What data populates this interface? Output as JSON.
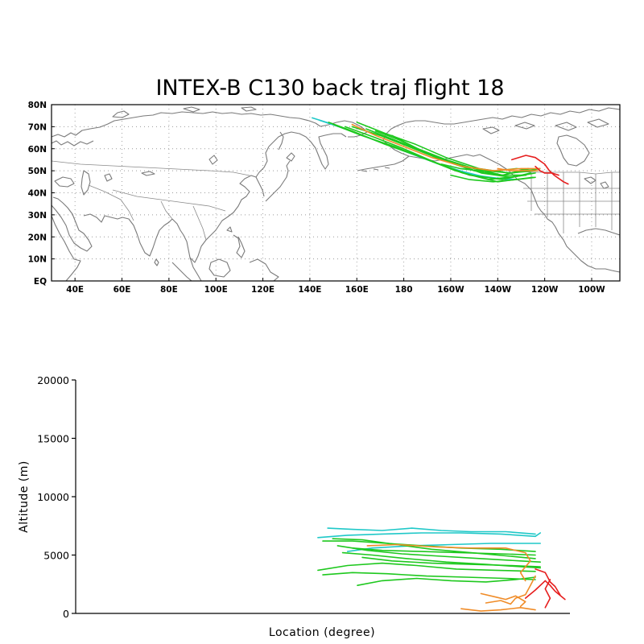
{
  "title": "INTEX-B C130 back traj flight 18",
  "colors": {
    "coastline": "#7a7a7a",
    "grid": "#9a9a9a",
    "cyan": "#1fc8c8",
    "green": "#1ec81e",
    "orange": "#f08c28",
    "red": "#e61e1e"
  },
  "chart_data": [
    {
      "type": "line",
      "subtype": "map-trajectories",
      "title": "INTEX-B C130 back traj flight 18",
      "xlim": [
        30,
        272
      ],
      "ylim": [
        0,
        80
      ],
      "grid": true,
      "x_ticks": [
        "40E",
        "60E",
        "80E",
        "100E",
        "120E",
        "140E",
        "160E",
        "180",
        "160W",
        "140W",
        "120W",
        "100W"
      ],
      "x_tick_values": [
        40,
        60,
        80,
        100,
        120,
        140,
        160,
        180,
        200,
        220,
        240,
        260
      ],
      "y_ticks": [
        "EQ",
        "10N",
        "20N",
        "30N",
        "40N",
        "50N",
        "60N",
        "70N",
        "80N"
      ],
      "y_tick_values": [
        0,
        10,
        20,
        30,
        40,
        50,
        60,
        70,
        80
      ],
      "series": [
        {
          "color": "cyan",
          "points": [
            [
              141,
              74
            ],
            [
              150,
              71
            ],
            [
              165,
              65
            ],
            [
              180,
              59
            ],
            [
              195,
              53
            ],
            [
              210,
              48
            ],
            [
              224,
              46
            ]
          ]
        },
        {
          "color": "cyan",
          "points": [
            [
              144,
              73
            ],
            [
              155,
              69
            ],
            [
              170,
              63
            ],
            [
              185,
              57
            ],
            [
              200,
              51
            ],
            [
              215,
              47
            ],
            [
              228,
              46
            ]
          ]
        },
        {
          "color": "green",
          "points": [
            [
              148,
              72
            ],
            [
              158,
              68
            ],
            [
              172,
              62
            ],
            [
              188,
              56
            ],
            [
              202,
              50
            ],
            [
              216,
              46
            ],
            [
              232,
              48
            ]
          ]
        },
        {
          "color": "green",
          "points": [
            [
              150,
              71
            ],
            [
              162,
              66
            ],
            [
              176,
              61
            ],
            [
              190,
              55
            ],
            [
              205,
              49
            ],
            [
              220,
              45
            ],
            [
              235,
              47
            ]
          ]
        },
        {
          "color": "green",
          "points": [
            [
              155,
              70
            ],
            [
              168,
              65
            ],
            [
              180,
              60
            ],
            [
              193,
              54
            ],
            [
              208,
              48
            ],
            [
              222,
              46
            ],
            [
              234,
              49
            ]
          ]
        },
        {
          "color": "green",
          "points": [
            [
              158,
              70
            ],
            [
              170,
              66
            ],
            [
              182,
              61
            ],
            [
              196,
              55
            ],
            [
              210,
              50
            ],
            [
              222,
              48
            ],
            [
              233,
              51
            ]
          ]
        },
        {
          "color": "green",
          "points": [
            [
              160,
              72
            ],
            [
              172,
              67
            ],
            [
              185,
              62
            ],
            [
              198,
              56
            ],
            [
              212,
              51
            ],
            [
              225,
              49
            ],
            [
              236,
              50
            ]
          ]
        },
        {
          "color": "green",
          "points": [
            [
              164,
              69
            ],
            [
              176,
              64
            ],
            [
              188,
              59
            ],
            [
              200,
              54
            ],
            [
              213,
              49
            ],
            [
              226,
              47
            ],
            [
              236,
              49
            ]
          ]
        },
        {
          "color": "green",
          "points": [
            [
              168,
              68
            ],
            [
              178,
              64
            ],
            [
              190,
              58
            ],
            [
              202,
              53
            ],
            [
              214,
              50
            ],
            [
              226,
              49
            ],
            [
              238,
              51
            ]
          ]
        },
        {
          "color": "green",
          "points": [
            [
              175,
              66
            ],
            [
              186,
              60
            ],
            [
              198,
              55
            ],
            [
              210,
              51
            ],
            [
              222,
              48
            ],
            [
              232,
              48
            ]
          ]
        },
        {
          "color": "green",
          "points": [
            [
              196,
              53
            ],
            [
              204,
              51
            ],
            [
              212,
              50
            ],
            [
              220,
              50
            ],
            [
              228,
              51
            ],
            [
              236,
              50
            ]
          ]
        },
        {
          "color": "green",
          "points": [
            [
              200,
              48
            ],
            [
              208,
              46
            ],
            [
              218,
              45
            ],
            [
              228,
              46
            ],
            [
              236,
              47
            ]
          ]
        },
        {
          "color": "orange",
          "points": [
            [
              158,
              71
            ],
            [
              168,
              66
            ],
            [
              180,
              61
            ],
            [
              192,
              56
            ],
            [
              205,
              52
            ],
            [
              218,
              50
            ],
            [
              230,
              51
            ],
            [
              238,
              51
            ]
          ]
        },
        {
          "color": "orange",
          "points": [
            [
              220,
              51
            ],
            [
              226,
              50
            ],
            [
              232,
              50
            ],
            [
              237,
              50
            ]
          ]
        },
        {
          "color": "red",
          "points": [
            [
              226,
              55
            ],
            [
              232,
              57
            ],
            [
              236,
              56
            ],
            [
              240,
              53
            ],
            [
              242,
              50
            ],
            [
              244,
              48
            ],
            [
              248,
              45
            ],
            [
              250,
              44
            ]
          ]
        },
        {
          "color": "red",
          "points": [
            [
              236,
              52
            ],
            [
              238,
              50
            ],
            [
              240,
              49
            ],
            [
              243,
              49
            ],
            [
              246,
              48
            ]
          ]
        }
      ]
    },
    {
      "type": "line",
      "title": "",
      "xlabel": "Location (degree)",
      "ylabel": "Altitude (m)",
      "ylim": [
        0,
        20000
      ],
      "y_ticks": [
        "0",
        "5000",
        "10000",
        "15000",
        "20000"
      ],
      "y_tick_values": [
        0,
        5000,
        10000,
        15000,
        20000
      ],
      "grid": false,
      "series": [
        {
          "color": "cyan",
          "points": [
            [
              0.49,
              6500
            ],
            [
              0.55,
              6700
            ],
            [
              0.62,
              6800
            ],
            [
              0.7,
              6900
            ],
            [
              0.78,
              6900
            ],
            [
              0.86,
              6800
            ],
            [
              0.93,
              6600
            ],
            [
              0.94,
              6900
            ]
          ]
        },
        {
          "color": "cyan",
          "points": [
            [
              0.51,
              7300
            ],
            [
              0.56,
              7200
            ],
            [
              0.62,
              7100
            ],
            [
              0.68,
              7300
            ],
            [
              0.74,
              7100
            ],
            [
              0.8,
              7000
            ],
            [
              0.87,
              7000
            ],
            [
              0.93,
              6800
            ]
          ]
        },
        {
          "color": "cyan",
          "points": [
            [
              0.55,
              5300
            ],
            [
              0.6,
              5600
            ],
            [
              0.68,
              5800
            ],
            [
              0.76,
              5900
            ],
            [
              0.84,
              6000
            ],
            [
              0.91,
              6000
            ],
            [
              0.94,
              6000
            ]
          ]
        },
        {
          "color": "green",
          "points": [
            [
              0.5,
              6200
            ],
            [
              0.56,
              6200
            ],
            [
              0.63,
              6000
            ],
            [
              0.7,
              5800
            ],
            [
              0.78,
              5600
            ],
            [
              0.86,
              5500
            ],
            [
              0.93,
              5300
            ]
          ]
        },
        {
          "color": "green",
          "points": [
            [
              0.52,
              6400
            ],
            [
              0.58,
              6300
            ],
            [
              0.65,
              5900
            ],
            [
              0.72,
              5500
            ],
            [
              0.8,
              5200
            ],
            [
              0.88,
              4900
            ],
            [
              0.93,
              4700
            ]
          ]
        },
        {
          "color": "green",
          "points": [
            [
              0.53,
              5800
            ],
            [
              0.59,
              5400
            ],
            [
              0.66,
              5100
            ],
            [
              0.74,
              4900
            ],
            [
              0.82,
              4700
            ],
            [
              0.9,
              4500
            ],
            [
              0.94,
              4400
            ]
          ]
        },
        {
          "color": "green",
          "points": [
            [
              0.54,
              5200
            ],
            [
              0.6,
              5000
            ],
            [
              0.67,
              4700
            ],
            [
              0.75,
              4400
            ],
            [
              0.83,
              4200
            ],
            [
              0.9,
              4000
            ],
            [
              0.94,
              3900
            ]
          ]
        },
        {
          "color": "green",
          "points": [
            [
              0.49,
              3700
            ],
            [
              0.55,
              4100
            ],
            [
              0.62,
              4300
            ],
            [
              0.69,
              4100
            ],
            [
              0.77,
              3800
            ],
            [
              0.85,
              3700
            ],
            [
              0.93,
              3600
            ]
          ]
        },
        {
          "color": "green",
          "points": [
            [
              0.5,
              3300
            ],
            [
              0.56,
              3500
            ],
            [
              0.63,
              3400
            ],
            [
              0.71,
              3200
            ],
            [
              0.79,
              3100
            ],
            [
              0.87,
              3000
            ],
            [
              0.93,
              2900
            ]
          ]
        },
        {
          "color": "green",
          "points": [
            [
              0.57,
              2400
            ],
            [
              0.62,
              2800
            ],
            [
              0.69,
              3000
            ],
            [
              0.76,
              2800
            ],
            [
              0.83,
              2700
            ],
            [
              0.89,
              2900
            ],
            [
              0.93,
              3100
            ]
          ]
        },
        {
          "color": "green",
          "points": [
            [
              0.56,
              5600
            ],
            [
              0.62,
              5400
            ],
            [
              0.7,
              5300
            ],
            [
              0.78,
              5200
            ],
            [
              0.86,
              5100
            ],
            [
              0.93,
              5000
            ]
          ]
        },
        {
          "color": "green",
          "points": [
            [
              0.58,
              4800
            ],
            [
              0.64,
              4500
            ],
            [
              0.72,
              4300
            ],
            [
              0.8,
              4200
            ],
            [
              0.88,
              4100
            ],
            [
              0.94,
              4000
            ]
          ]
        },
        {
          "color": "orange",
          "points": [
            [
              0.59,
              5800
            ],
            [
              0.65,
              5900
            ],
            [
              0.73,
              5700
            ],
            [
              0.8,
              5600
            ],
            [
              0.87,
              5600
            ],
            [
              0.91,
              5200
            ],
            [
              0.92,
              4500
            ],
            [
              0.9,
              3500
            ],
            [
              0.91,
              2800
            ]
          ]
        },
        {
          "color": "orange",
          "points": [
            [
              0.82,
              1700
            ],
            [
              0.85,
              1400
            ],
            [
              0.87,
              1200
            ],
            [
              0.89,
              1500
            ],
            [
              0.91,
              1000
            ],
            [
              0.9,
              600
            ]
          ]
        },
        {
          "color": "orange",
          "points": [
            [
              0.78,
              400
            ],
            [
              0.82,
              200
            ],
            [
              0.86,
              300
            ],
            [
              0.9,
              500
            ],
            [
              0.93,
              300
            ]
          ]
        },
        {
          "color": "orange",
          "points": [
            [
              0.83,
              900
            ],
            [
              0.86,
              1100
            ],
            [
              0.88,
              800
            ],
            [
              0.89,
              1300
            ],
            [
              0.91,
              1600
            ],
            [
              0.92,
              2400
            ],
            [
              0.93,
              3200
            ]
          ]
        },
        {
          "color": "red",
          "points": [
            [
              0.91,
              1300
            ],
            [
              0.93,
              2000
            ],
            [
              0.95,
              2800
            ],
            [
              0.96,
              2400
            ],
            [
              0.97,
              1900
            ],
            [
              0.99,
              1200
            ]
          ]
        },
        {
          "color": "red",
          "points": [
            [
              0.93,
              3800
            ],
            [
              0.95,
              3500
            ],
            [
              0.96,
              2700
            ],
            [
              0.97,
              2300
            ],
            [
              0.98,
              1600
            ]
          ]
        },
        {
          "color": "red",
          "points": [
            [
              0.95,
              500
            ],
            [
              0.96,
              1300
            ],
            [
              0.95,
              2100
            ],
            [
              0.96,
              2900
            ]
          ]
        }
      ]
    }
  ]
}
